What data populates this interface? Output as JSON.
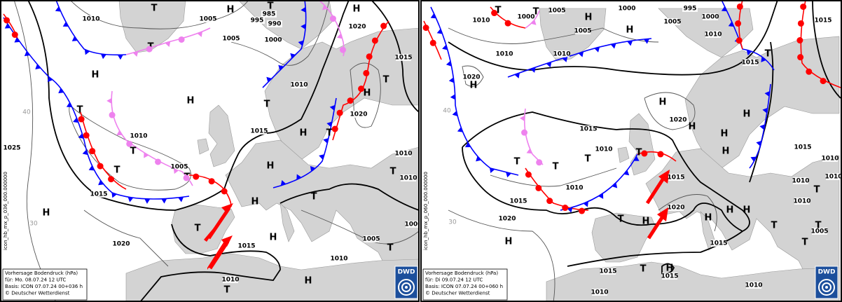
{
  "panels": [
    {
      "info": {
        "product": "Vorhersage Bodendruck (hPa)",
        "valid": "für:  Mo. 08.07.24  12 UTC",
        "basis": "Basis: ICON  07.07.24 00+036 h",
        "copyright": "© Deutscher Wetterdienst"
      },
      "logo": "DWD",
      "file_id": "icon_hb_mx_p_036_000.000000",
      "latitudes": [
        "40",
        "30"
      ],
      "isobar_labels": [
        1010,
        1005,
        985,
        995,
        990,
        1000,
        1005,
        1020,
        1015,
        1010,
        1020,
        1010,
        1005,
        1015,
        1015,
        1025,
        1020,
        1015,
        1010,
        1010,
        1000,
        1005,
        1010,
        1010
      ],
      "centers": [
        "T",
        "H",
        "T",
        "H",
        "T",
        "H",
        "H",
        "T",
        "T",
        "T",
        "T",
        "T",
        "H",
        "T",
        "H",
        "H",
        "T",
        "H",
        "T",
        "T",
        "H",
        "H",
        "T",
        "T",
        "T",
        "H"
      ]
    },
    {
      "info": {
        "product": "Vorhersage Bodendruck (hPa)",
        "valid": "für:  Di  09.07.24  12 UTC",
        "basis": "Basis: ICON  07.07.24 00+060 h",
        "copyright": "© Deutscher Wetterdienst"
      },
      "logo": "DWD",
      "file_id": "icon_hb_mx_p_060_000.000000",
      "latitudes": [
        "40",
        "30"
      ],
      "isobar_labels": [
        1010,
        1000,
        1005,
        1000,
        1005,
        995,
        1000,
        1005,
        1010,
        1015,
        1010,
        1010,
        1015,
        1020,
        1020,
        1015,
        1010,
        1010,
        1015,
        1015,
        1020,
        1020,
        1015,
        1010,
        1010,
        1010,
        1010,
        1015,
        1015,
        1015,
        1010,
        1010,
        1005
      ],
      "centers": [
        "T",
        "T",
        "H",
        "H",
        "T",
        "H",
        "H",
        "H",
        "H",
        "H",
        "H",
        "T",
        "T",
        "T",
        "T",
        "H",
        "H",
        "H",
        "T",
        "H",
        "H",
        "T",
        "T",
        "T",
        "T",
        "T",
        "H"
      ]
    }
  ]
}
